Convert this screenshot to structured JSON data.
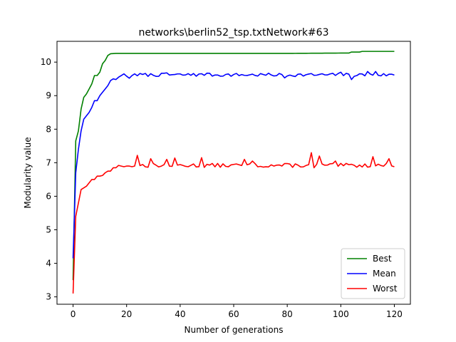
{
  "chart_data": {
    "type": "line",
    "title": "networks\\berlin52_tsp.txtNetwork#63",
    "xlabel": "Number of generations",
    "ylabel": "Modularity value",
    "xlim": [
      -6,
      126
    ],
    "ylim": [
      2.78,
      10.62
    ],
    "xticks": [
      0,
      20,
      40,
      60,
      80,
      100,
      120
    ],
    "yticks": [
      3,
      4,
      5,
      6,
      7,
      8,
      9,
      10
    ],
    "grid": false,
    "legend_position": "lower-right",
    "series": [
      {
        "name": "Best",
        "color": "#008000",
        "anchors": [
          [
            0,
            3.5
          ],
          [
            1,
            7.65
          ],
          [
            2,
            7.95
          ],
          [
            3,
            8.6
          ],
          [
            4,
            8.95
          ],
          [
            5,
            9.05
          ],
          [
            6,
            9.2
          ],
          [
            7,
            9.35
          ],
          [
            8,
            9.6
          ],
          [
            9,
            9.6
          ],
          [
            10,
            9.7
          ],
          [
            11,
            9.95
          ],
          [
            12,
            10.05
          ],
          [
            13,
            10.2
          ],
          [
            14,
            10.25
          ],
          [
            16,
            10.26
          ],
          [
            30,
            10.26
          ],
          [
            60,
            10.26
          ],
          [
            80,
            10.26
          ],
          [
            100,
            10.27
          ],
          [
            103,
            10.27
          ],
          [
            104,
            10.3
          ],
          [
            107,
            10.3
          ],
          [
            108,
            10.32
          ],
          [
            120,
            10.32
          ]
        ]
      },
      {
        "name": "Mean",
        "color": "#0000ff",
        "anchors": [
          [
            0,
            4.15
          ],
          [
            1,
            6.7
          ],
          [
            2,
            7.4
          ],
          [
            3,
            7.95
          ],
          [
            4,
            8.3
          ],
          [
            5,
            8.4
          ],
          [
            6,
            8.5
          ],
          [
            7,
            8.65
          ],
          [
            8,
            8.85
          ],
          [
            9,
            8.85
          ],
          [
            10,
            9.0
          ],
          [
            11,
            9.1
          ],
          [
            12,
            9.2
          ],
          [
            13,
            9.3
          ],
          [
            14,
            9.45
          ],
          [
            15,
            9.5
          ],
          [
            16,
            9.48
          ],
          [
            17,
            9.55
          ],
          [
            18,
            9.6
          ],
          [
            19,
            9.65
          ],
          [
            20,
            9.58
          ],
          [
            21,
            9.52
          ],
          [
            22,
            9.6
          ],
          [
            23,
            9.65
          ]
        ],
        "noise": {
          "from": 24,
          "to": 120,
          "base": 9.62,
          "amp": 0.05,
          "seed": 7
        },
        "spikes": [
          [
            35,
            9.68
          ],
          [
            45,
            9.66
          ],
          [
            50,
            9.67
          ],
          [
            79,
            9.53
          ],
          [
            100,
            9.7
          ],
          [
            104,
            9.48
          ],
          [
            110,
            9.72
          ],
          [
            113,
            9.72
          ]
        ]
      },
      {
        "name": "Worst",
        "color": "#ff0000",
        "anchors": [
          [
            0,
            3.1
          ],
          [
            1,
            5.4
          ],
          [
            2,
            5.8
          ],
          [
            3,
            6.2
          ],
          [
            4,
            6.25
          ],
          [
            5,
            6.3
          ],
          [
            6,
            6.4
          ],
          [
            7,
            6.5
          ],
          [
            8,
            6.5
          ],
          [
            9,
            6.6
          ],
          [
            10,
            6.6
          ],
          [
            11,
            6.62
          ],
          [
            12,
            6.7
          ],
          [
            13,
            6.75
          ],
          [
            14,
            6.75
          ],
          [
            15,
            6.85
          ],
          [
            16,
            6.85
          ],
          [
            17,
            6.92
          ],
          [
            18,
            6.9
          ],
          [
            19,
            6.88
          ],
          [
            20,
            6.9
          ],
          [
            21,
            6.9
          ],
          [
            22,
            6.88
          ],
          [
            23,
            6.9
          ]
        ],
        "noise": {
          "from": 24,
          "to": 120,
          "base": 6.92,
          "amp": 0.06,
          "seed": 13
        },
        "spikes": [
          [
            24,
            7.22
          ],
          [
            29,
            7.12
          ],
          [
            35,
            7.1
          ],
          [
            38,
            7.14
          ],
          [
            48,
            7.15
          ],
          [
            64,
            7.1
          ],
          [
            67,
            7.05
          ],
          [
            89,
            7.3
          ],
          [
            90,
            6.85
          ],
          [
            92,
            7.2
          ],
          [
            98,
            7.05
          ],
          [
            112,
            7.18
          ],
          [
            118,
            7.12
          ],
          [
            120,
            6.88
          ]
        ]
      }
    ]
  }
}
